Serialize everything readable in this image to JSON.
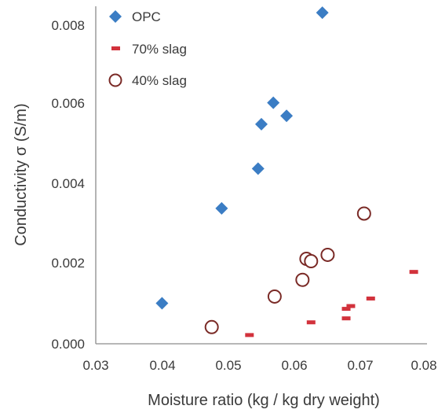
{
  "chart_data": {
    "type": "scatter",
    "title": "",
    "xlabel": "Moisture ratio (kg / kg dry weight)",
    "ylabel": "Conductivity σ (S/m)",
    "xlim": [
      0.03,
      0.08
    ],
    "ylim": [
      0,
      0.0085
    ],
    "x_ticks": [
      "0.03",
      "0.04",
      "0.05",
      "0.06",
      "0.07",
      "0.08"
    ],
    "y_ticks": [
      "0.000",
      "0.002",
      "0.004",
      "0.006",
      "0.008"
    ],
    "grid": false,
    "legend_position": "top-left",
    "series": [
      {
        "name": "OPC",
        "marker": "diamond",
        "color": "#3b7dc4",
        "points": [
          {
            "x": 0.04,
            "y": 0.00102
          },
          {
            "x": 0.049,
            "y": 0.00341
          },
          {
            "x": 0.0545,
            "y": 0.00441
          },
          {
            "x": 0.055,
            "y": 0.00553
          },
          {
            "x": 0.0568,
            "y": 0.00607
          },
          {
            "x": 0.0588,
            "y": 0.00574
          },
          {
            "x": 0.0642,
            "y": 0.00834
          }
        ]
      },
      {
        "name": "70% slag",
        "marker": "dash",
        "color": "#d2323c",
        "points": [
          {
            "x": 0.0532,
            "y": 0.00022
          },
          {
            "x": 0.0625,
            "y": 0.00054
          },
          {
            "x": 0.0678,
            "y": 0.00064
          },
          {
            "x": 0.0678,
            "y": 0.00088
          },
          {
            "x": 0.0685,
            "y": 0.00095
          },
          {
            "x": 0.0715,
            "y": 0.00114
          },
          {
            "x": 0.078,
            "y": 0.00181
          }
        ]
      },
      {
        "name": "40% slag",
        "marker": "circle",
        "color": "#7a2a26",
        "points": [
          {
            "x": 0.0475,
            "y": 0.00042
          },
          {
            "x": 0.057,
            "y": 0.00119
          },
          {
            "x": 0.0612,
            "y": 0.00161
          },
          {
            "x": 0.0618,
            "y": 0.00214
          },
          {
            "x": 0.0625,
            "y": 0.00208
          },
          {
            "x": 0.065,
            "y": 0.00224
          },
          {
            "x": 0.0705,
            "y": 0.00328
          }
        ]
      }
    ]
  }
}
